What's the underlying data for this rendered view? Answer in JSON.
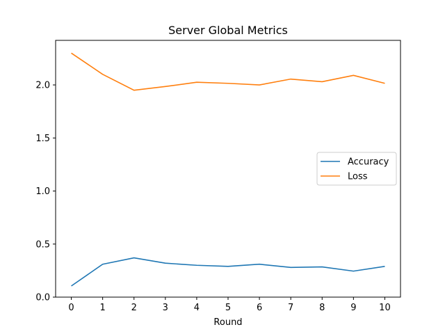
{
  "chart_data": {
    "type": "line",
    "title": "Server Global Metrics",
    "xlabel": "Round",
    "ylabel": "",
    "x": [
      0,
      1,
      2,
      3,
      4,
      5,
      6,
      7,
      8,
      9,
      10
    ],
    "xticks": [
      "0",
      "1",
      "2",
      "3",
      "4",
      "5",
      "6",
      "7",
      "8",
      "9",
      "10"
    ],
    "yticks": [
      "0.0",
      "0.5",
      "1.0",
      "1.5",
      "2.0"
    ],
    "ytick_values": [
      0.0,
      0.5,
      1.0,
      1.5,
      2.0
    ],
    "xlim": [
      -0.5,
      10.5
    ],
    "ylim": [
      0.0,
      2.42
    ],
    "grid": false,
    "legend_position": "center-right",
    "series": [
      {
        "name": "Accuracy",
        "color": "#1f77b4",
        "values": [
          0.105,
          0.31,
          0.37,
          0.32,
          0.3,
          0.29,
          0.31,
          0.28,
          0.285,
          0.245,
          0.29
        ]
      },
      {
        "name": "Loss",
        "color": "#ff7f0e",
        "values": [
          2.3,
          2.1,
          1.95,
          1.985,
          2.025,
          2.015,
          2.0,
          2.055,
          2.03,
          2.09,
          2.015
        ]
      }
    ]
  }
}
